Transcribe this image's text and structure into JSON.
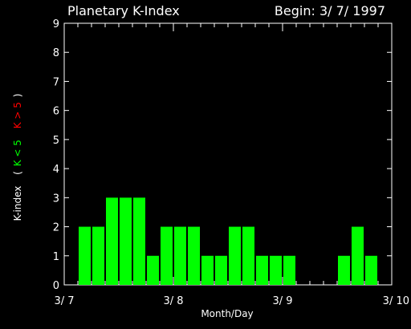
{
  "colors": {
    "background": "#000000",
    "foreground": "#ffffff",
    "quiet_bar": "#00ff00",
    "storm_bar": "#ff0000"
  },
  "chart_data": {
    "type": "bar",
    "title": "Planetary K-Index",
    "begin_label": "Begin: 3/ 7/ 1997",
    "xlabel": "Month/Day",
    "ylabel": {
      "main": "K-index",
      "open_paren": "(",
      "quiet": "K < 5",
      "storm": "K > 5",
      "close_paren": ")"
    },
    "ylim": [
      0,
      9
    ],
    "yticks": [
      0,
      1,
      2,
      3,
      4,
      5,
      6,
      7,
      8,
      9
    ],
    "xlim": [
      0,
      24
    ],
    "xticks": [
      {
        "x": 0,
        "label": "3/ 7"
      },
      {
        "x": 8,
        "label": "3/ 8"
      },
      {
        "x": 16,
        "label": "3/ 9"
      },
      {
        "x": 24,
        "label": "3/ 10"
      }
    ],
    "interval_hours": 3,
    "values": [
      0,
      2,
      2,
      3,
      3,
      3,
      1,
      2,
      2,
      2,
      1,
      1,
      2,
      2,
      1,
      1,
      1,
      null,
      null,
      null,
      1,
      2,
      1,
      null
    ],
    "threshold": 5
  }
}
